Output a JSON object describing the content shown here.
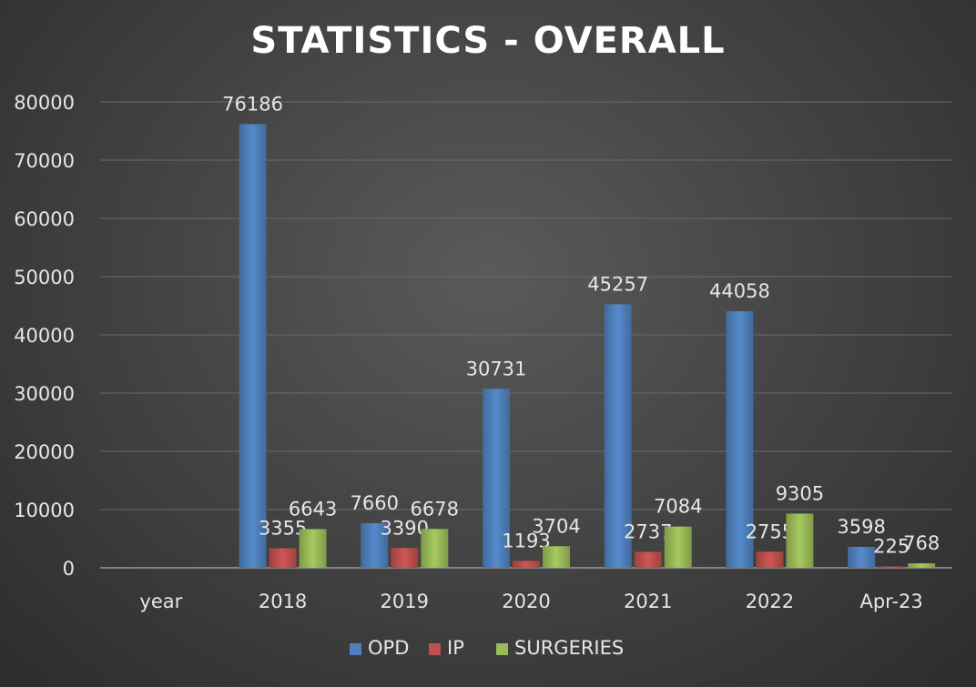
{
  "chart_data": {
    "type": "bar",
    "title": "STATISTICS - OVERALL",
    "xlabel": "",
    "ylabel": "",
    "ylim": [
      0,
      80000
    ],
    "yticks": [
      0,
      10000,
      20000,
      30000,
      40000,
      50000,
      60000,
      70000,
      80000
    ],
    "categories": [
      "year",
      "2018",
      "2019",
      "2020",
      "2021",
      "2022",
      "Apr-23"
    ],
    "series": [
      {
        "name": "OPD",
        "color": "#4f81bd",
        "values": [
          null,
          76186,
          7660,
          30731,
          45257,
          44058,
          3598
        ]
      },
      {
        "name": "IP",
        "color": "#c0504d",
        "values": [
          null,
          3355,
          3390,
          1193,
          2737,
          2755,
          225
        ]
      },
      {
        "name": "SURGERIES",
        "color": "#9bbb59",
        "values": [
          null,
          6643,
          6678,
          3704,
          7084,
          9305,
          768
        ]
      }
    ],
    "grid": true,
    "legend": "bottom"
  }
}
